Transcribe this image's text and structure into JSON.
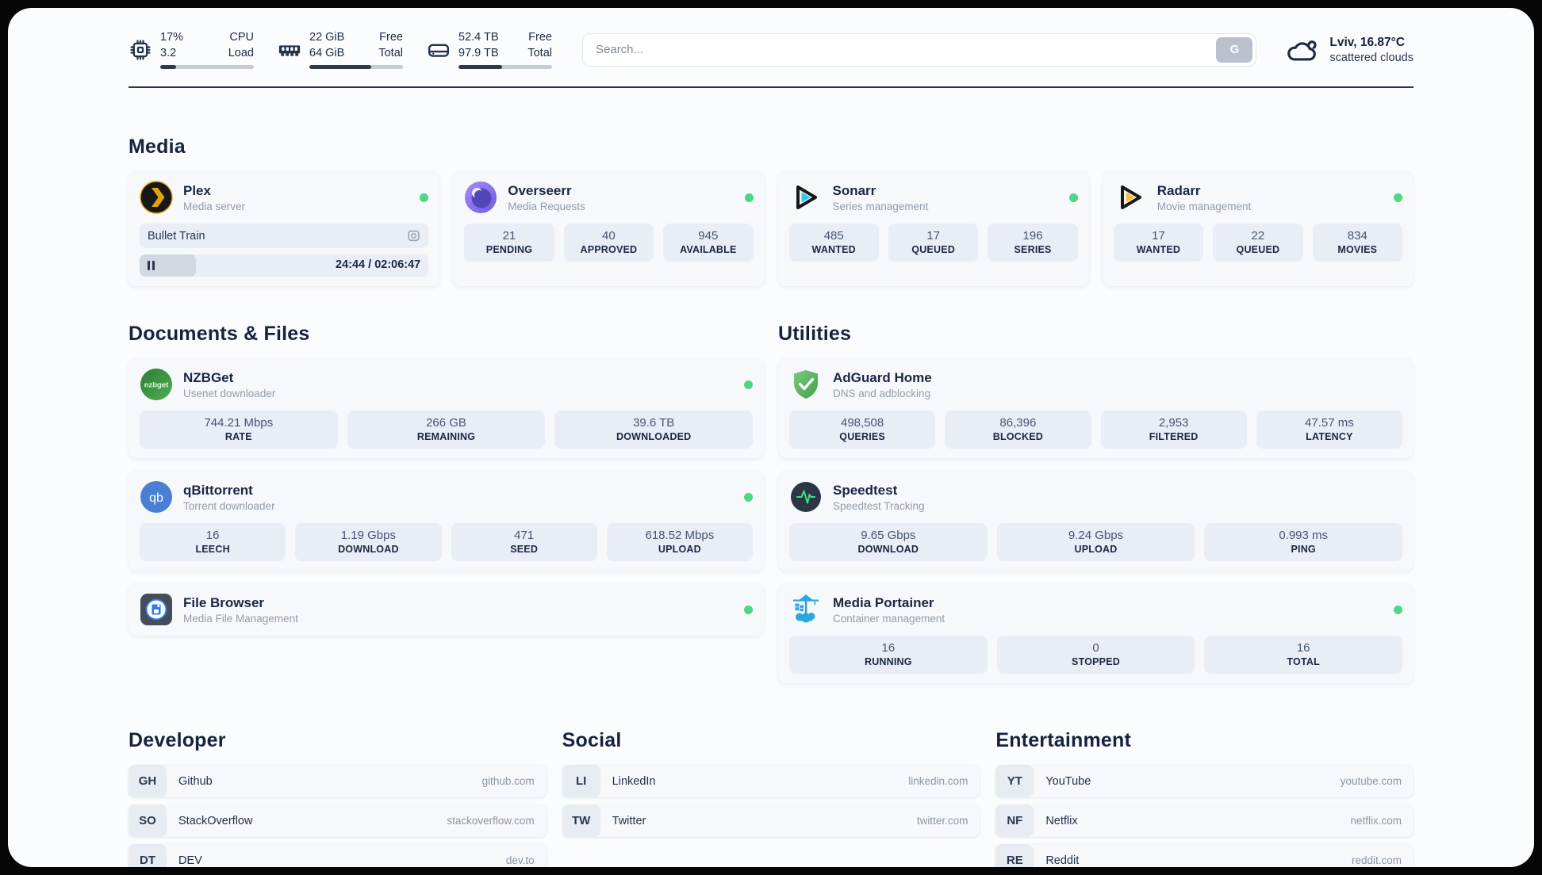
{
  "header": {
    "system_stats": [
      {
        "icon": "cpu-icon",
        "values": [
          "17%",
          "3.2"
        ],
        "labels": [
          "CPU",
          "Load"
        ],
        "progress": 17
      },
      {
        "icon": "memory-icon",
        "values": [
          "22 GiB",
          "64 GiB"
        ],
        "labels": [
          "Free",
          "Total"
        ],
        "progress": 66
      },
      {
        "icon": "disk-icon",
        "values": [
          "52.4 TB",
          "97.9 TB"
        ],
        "labels": [
          "Free",
          "Total"
        ],
        "progress": 47
      }
    ],
    "search": {
      "placeholder": "Search...",
      "button_label": "G"
    },
    "weather": {
      "location": "Lviv, 16.87°C",
      "condition": "scattered clouds"
    }
  },
  "sections": {
    "media": "Media",
    "documents": "Documents & Files",
    "utilities": "Utilities",
    "developer": "Developer",
    "social": "Social",
    "entertainment": "Entertainment"
  },
  "apps": {
    "plex": {
      "name": "Plex",
      "desc": "Media server",
      "now_playing": "Bullet Train",
      "time": "24:44 / 02:06:47",
      "progress": 19.5,
      "status": "online"
    },
    "overseerr": {
      "name": "Overseerr",
      "desc": "Media Requests",
      "status": "online",
      "stats": [
        {
          "value": "21",
          "label": "PENDING"
        },
        {
          "value": "40",
          "label": "APPROVED"
        },
        {
          "value": "945",
          "label": "AVAILABLE"
        }
      ]
    },
    "sonarr": {
      "name": "Sonarr",
      "desc": "Series management",
      "status": "online",
      "stats": [
        {
          "value": "485",
          "label": "WANTED"
        },
        {
          "value": "17",
          "label": "QUEUED"
        },
        {
          "value": "196",
          "label": "SERIES"
        }
      ]
    },
    "radarr": {
      "name": "Radarr",
      "desc": "Movie management",
      "status": "online",
      "stats": [
        {
          "value": "17",
          "label": "WANTED"
        },
        {
          "value": "22",
          "label": "QUEUED"
        },
        {
          "value": "834",
          "label": "MOVIES"
        }
      ]
    },
    "nzbget": {
      "name": "NZBGet",
      "desc": "Usenet downloader",
      "status": "online",
      "icon_text": "nzbget",
      "stats": [
        {
          "value": "744.21 Mbps",
          "label": "RATE"
        },
        {
          "value": "266 GB",
          "label": "REMAINING"
        },
        {
          "value": "39.6 TB",
          "label": "DOWNLOADED"
        }
      ]
    },
    "qbittorrent": {
      "name": "qBittorrent",
      "desc": "Torrent downloader",
      "status": "online",
      "icon_text": "qb",
      "stats": [
        {
          "value": "16",
          "label": "LEECH"
        },
        {
          "value": "1.19 Gbps",
          "label": "DOWNLOAD"
        },
        {
          "value": "471",
          "label": "SEED"
        },
        {
          "value": "618.52 Mbps",
          "label": "UPLOAD"
        }
      ]
    },
    "filebrowser": {
      "name": "File Browser",
      "desc": "Media File Management",
      "status": "online"
    },
    "adguard": {
      "name": "AdGuard Home",
      "desc": "DNS and adblocking",
      "stats": [
        {
          "value": "498,508",
          "label": "QUERIES"
        },
        {
          "value": "86,396",
          "label": "BLOCKED"
        },
        {
          "value": "2,953",
          "label": "FILTERED"
        },
        {
          "value": "47.57 ms",
          "label": "LATENCY"
        }
      ]
    },
    "speedtest": {
      "name": "Speedtest",
      "desc": "Speedtest Tracking",
      "stats": [
        {
          "value": "9.65 Gbps",
          "label": "DOWNLOAD"
        },
        {
          "value": "9.24 Gbps",
          "label": "UPLOAD"
        },
        {
          "value": "0.993 ms",
          "label": "PING"
        }
      ]
    },
    "portainer": {
      "name": "Media Portainer",
      "desc": "Container management",
      "status": "online",
      "stats": [
        {
          "value": "16",
          "label": "RUNNING"
        },
        {
          "value": "0",
          "label": "STOPPED"
        },
        {
          "value": "16",
          "label": "TOTAL"
        }
      ]
    }
  },
  "links": {
    "developer": [
      {
        "abbr": "GH",
        "name": "Github",
        "url": "github.com"
      },
      {
        "abbr": "SO",
        "name": "StackOverflow",
        "url": "stackoverflow.com"
      },
      {
        "abbr": "DT",
        "name": "DEV",
        "url": "dev.to"
      }
    ],
    "social": [
      {
        "abbr": "LI",
        "name": "LinkedIn",
        "url": "linkedin.com"
      },
      {
        "abbr": "TW",
        "name": "Twitter",
        "url": "twitter.com"
      }
    ],
    "entertainment": [
      {
        "abbr": "YT",
        "name": "YouTube",
        "url": "youtube.com"
      },
      {
        "abbr": "NF",
        "name": "Netflix",
        "url": "netflix.com"
      },
      {
        "abbr": "RE",
        "name": "Reddit",
        "url": "reddit.com"
      }
    ]
  },
  "colors": {
    "status_online": "#4fd683",
    "accent_plex": "#e5a00d",
    "accent_sonarr": "#35c5f4",
    "accent_radarr": "#ffc230",
    "accent_portainer": "#29a8e0"
  }
}
